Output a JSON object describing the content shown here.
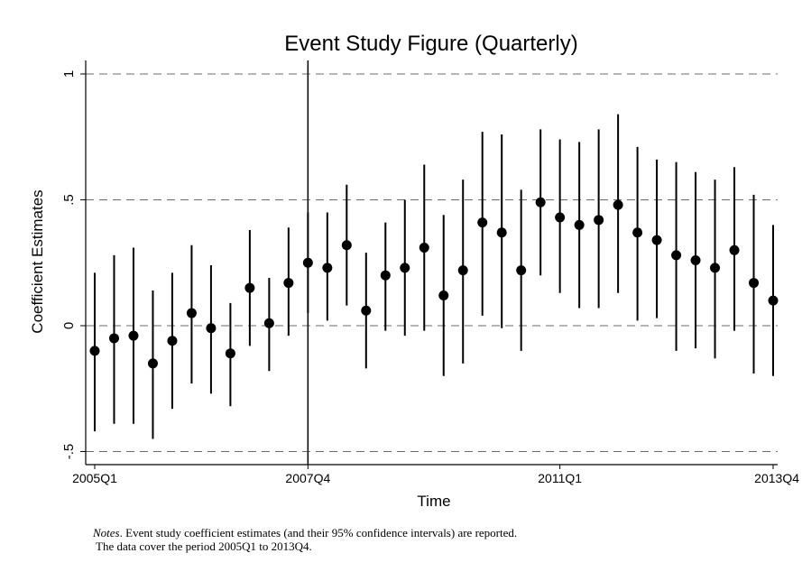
{
  "chart_data": {
    "type": "scatter",
    "title": "Event Study Figure (Quarterly)",
    "xlabel": "Time",
    "ylabel": "Coefficient Estimates",
    "x_tick_labels": [
      "2005Q1",
      "2007Q4",
      "2011Q1",
      "2013Q4"
    ],
    "x_tick_positions": [
      0,
      11,
      24,
      35
    ],
    "y_ticks": [
      1,
      0.5,
      0,
      -0.5
    ],
    "y_tick_labels": [
      "1",
      ".5",
      "0",
      "-.5"
    ],
    "ylim": [
      -0.55,
      1.05
    ],
    "xlim": [
      -0.5,
      35.5
    ],
    "grid": "dashed horizontal lines at y ticks",
    "event_line_at": "2007Q4",
    "point_color": "#000000",
    "x": [
      "2005Q1",
      "2005Q2",
      "2005Q3",
      "2005Q4",
      "2006Q1",
      "2006Q2",
      "2006Q3",
      "2006Q4",
      "2007Q1",
      "2007Q2",
      "2007Q3",
      "2007Q4",
      "2008Q1",
      "2008Q2",
      "2008Q3",
      "2008Q4",
      "2009Q1",
      "2009Q2",
      "2009Q3",
      "2009Q4",
      "2010Q1",
      "2010Q2",
      "2010Q3",
      "2010Q4",
      "2011Q1",
      "2011Q2",
      "2011Q3",
      "2011Q4",
      "2012Q1",
      "2012Q2",
      "2012Q3",
      "2012Q4",
      "2013Q1",
      "2013Q2",
      "2013Q3",
      "2013Q4"
    ],
    "series": [
      {
        "estimate": [
          -0.1,
          -0.05,
          -0.04,
          -0.15,
          -0.06,
          0.05,
          -0.01,
          -0.11,
          0.15,
          0.01,
          0.17,
          0.25,
          0.23,
          0.32,
          0.06,
          0.2,
          0.23,
          0.31,
          0.12,
          0.22,
          0.41,
          0.37,
          0.22,
          0.49,
          0.43,
          0.4,
          0.42,
          0.48,
          0.37,
          0.34,
          0.28,
          0.26,
          0.23,
          0.3,
          0.17,
          0.1
        ],
        "ci_lower": [
          -0.42,
          -0.39,
          -0.39,
          -0.45,
          -0.33,
          -0.23,
          -0.27,
          -0.32,
          -0.08,
          -0.18,
          -0.04,
          0.05,
          0.02,
          0.08,
          -0.17,
          -0.02,
          -0.04,
          -0.02,
          -0.2,
          -0.15,
          0.04,
          -0.01,
          -0.1,
          0.2,
          0.13,
          0.07,
          0.07,
          0.13,
          0.02,
          0.03,
          -0.1,
          -0.09,
          -0.13,
          -0.02,
          -0.19,
          -0.2
        ],
        "ci_upper": [
          0.21,
          0.28,
          0.31,
          0.14,
          0.21,
          0.32,
          0.24,
          0.09,
          0.38,
          0.19,
          0.39,
          0.45,
          0.45,
          0.56,
          0.29,
          0.41,
          0.5,
          0.64,
          0.44,
          0.58,
          0.77,
          0.76,
          0.54,
          0.78,
          0.74,
          0.73,
          0.78,
          0.84,
          0.71,
          0.66,
          0.65,
          0.61,
          0.58,
          0.63,
          0.52,
          0.4
        ]
      }
    ]
  },
  "notes": {
    "label": "Notes",
    "line1": ". Event study coefficient estimates (and their 95% confidence intervals) are reported.",
    "line2": "The data cover the period 2005Q1 to 2013Q4."
  }
}
